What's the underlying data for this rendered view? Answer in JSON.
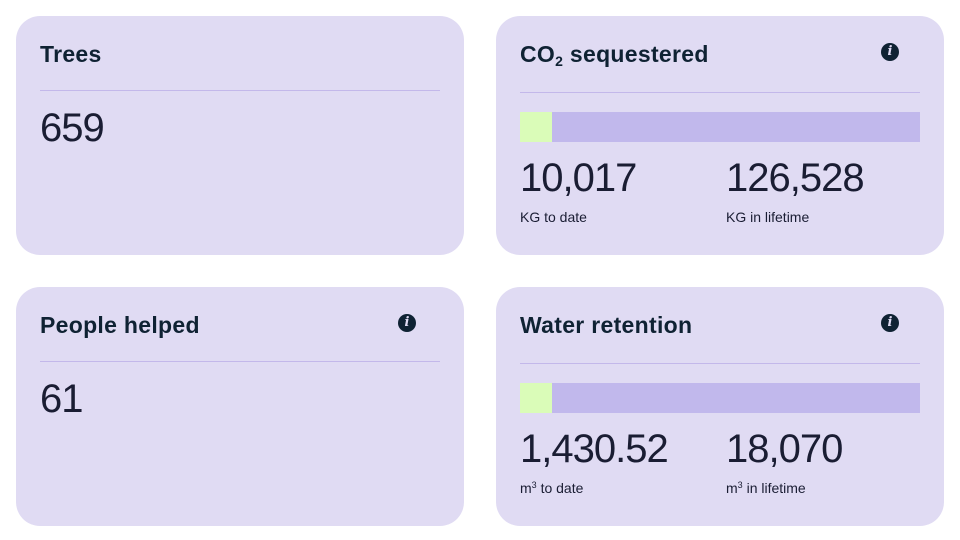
{
  "cards": {
    "trees": {
      "title": "Trees",
      "value": "659"
    },
    "co2": {
      "title_prefix": "CO",
      "title_subscript": "2",
      "title_suffix": " sequestered",
      "progress_fraction": 0.08,
      "to_date_value": "10,017",
      "to_date_label": "KG to date",
      "lifetime_value": "126,528",
      "lifetime_label": "KG in lifetime"
    },
    "people": {
      "title": "People helped",
      "value": "61"
    },
    "water": {
      "title": "Water retention",
      "progress_fraction": 0.08,
      "to_date_value": "1,430.52",
      "to_date_unit": "m",
      "to_date_unit_sup": "3",
      "to_date_label": " to date",
      "lifetime_value": "18,070",
      "lifetime_unit": "m",
      "lifetime_unit_sup": "3",
      "lifetime_label": " in lifetime"
    }
  },
  "icons": {
    "info": "i"
  },
  "colors": {
    "card_bg": "#e0dbf3",
    "text": "#0f2233",
    "progress_track": "#c1b8ec",
    "progress_fill": "#dafcb8"
  }
}
